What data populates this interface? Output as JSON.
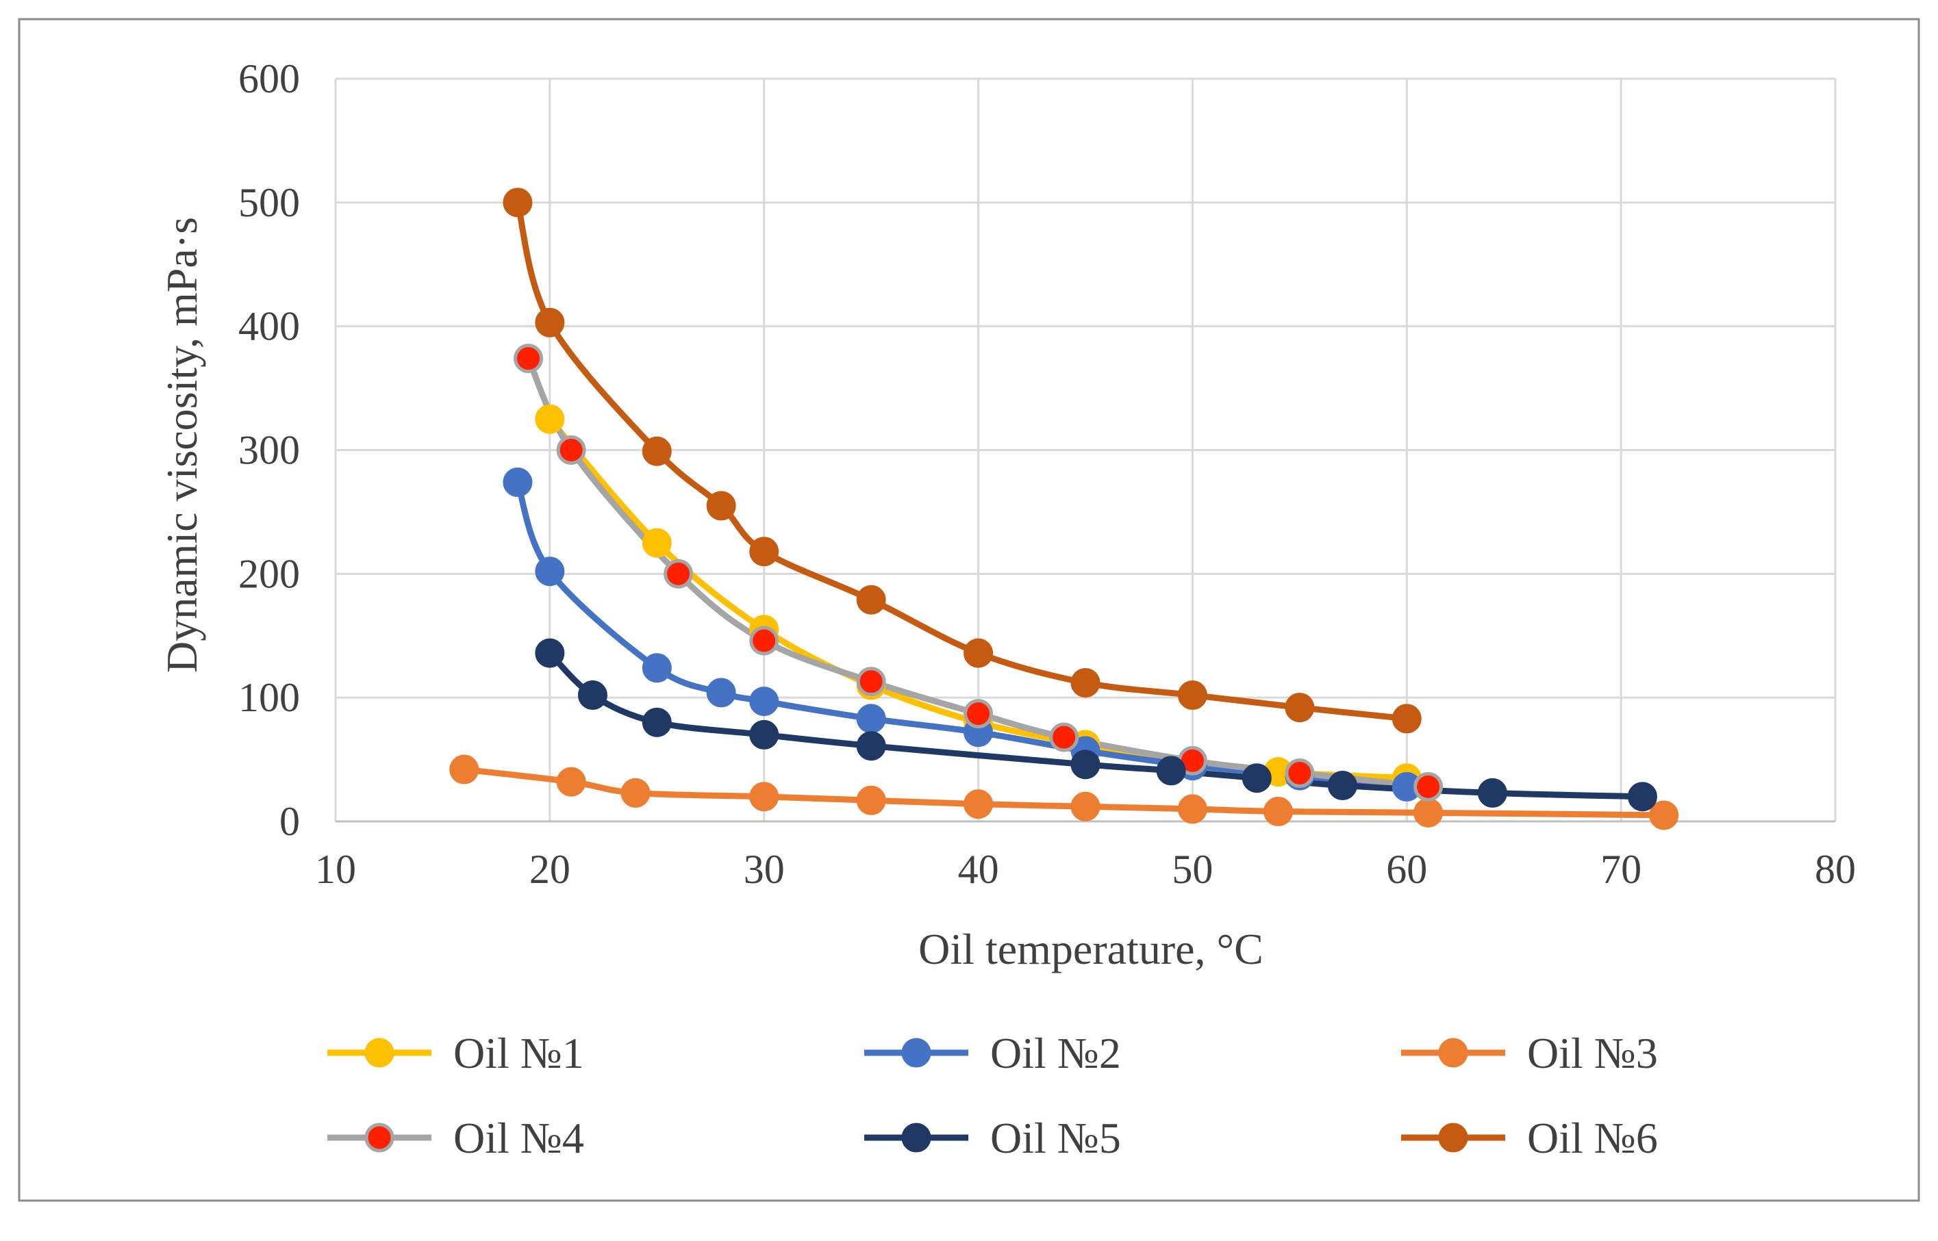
{
  "chart_data": {
    "type": "line",
    "title": "",
    "xlabel": "Oil temperature, °C",
    "ylabel": "Dynamic viscosity, mPa·s",
    "xlim": [
      10,
      80
    ],
    "ylim": [
      0,
      600
    ],
    "xticks": [
      10,
      20,
      30,
      40,
      50,
      60,
      70,
      80
    ],
    "yticks": [
      0,
      100,
      200,
      300,
      400,
      500,
      600
    ],
    "xtick_labels": [
      "10",
      "20",
      "30",
      "40",
      "50",
      "60",
      "70",
      "80"
    ],
    "ytick_labels": [
      "0",
      "100",
      "200",
      "300",
      "400",
      "500",
      "600"
    ],
    "grid": true,
    "legend_position": "bottom",
    "series": [
      {
        "name": "Oil №1",
        "color": "#FFC000",
        "marker_color": "#FFC000",
        "marker_edge": "#FFC000",
        "x": [
          20,
          25,
          30,
          35,
          40,
          45,
          50,
          54,
          60
        ],
        "y": [
          325,
          225,
          155,
          110,
          80,
          62,
          48,
          40,
          35
        ]
      },
      {
        "name": "Oil №2",
        "color": "#4472C4",
        "marker_color": "#4472C4",
        "marker_edge": "#4472C4",
        "x": [
          18.5,
          20,
          25,
          28,
          30,
          35,
          40,
          45,
          50,
          55,
          60
        ],
        "y": [
          274,
          202,
          124,
          104,
          97,
          83,
          72,
          57,
          45,
          37,
          28
        ]
      },
      {
        "name": "Oil №3",
        "color": "#ED7D31",
        "marker_color": "#ED7D31",
        "marker_edge": "#ED7D31",
        "x": [
          16,
          21,
          24,
          30,
          35,
          40,
          45,
          50,
          54,
          61,
          72
        ],
        "y": [
          42,
          32,
          23,
          20,
          17,
          14,
          12,
          10,
          8,
          7,
          5
        ]
      },
      {
        "name": "Oil №4",
        "color": "#A5A5A5",
        "marker_color": "#FF2000",
        "marker_edge": "#A5A5A5",
        "x": [
          19,
          21,
          26,
          30,
          35,
          40,
          44,
          50,
          55,
          61
        ],
        "y": [
          374,
          300,
          200,
          146,
          113,
          87,
          68,
          49,
          39,
          28
        ]
      },
      {
        "name": "Oil №5",
        "color": "#1F3864",
        "marker_color": "#1F3864",
        "marker_edge": "#1F3864",
        "x": [
          20,
          22,
          25,
          30,
          35,
          45,
          49,
          53,
          57,
          64,
          71
        ],
        "y": [
          136,
          102,
          80,
          70,
          61,
          46,
          41,
          35,
          29,
          23,
          20
        ]
      },
      {
        "name": "Oil №6",
        "color": "#C55A11",
        "marker_color": "#C55A11",
        "marker_edge": "#C55A11",
        "x": [
          18.5,
          20,
          25,
          28,
          30,
          35,
          40,
          45,
          50,
          55,
          60
        ],
        "y": [
          500,
          403,
          299,
          255,
          218,
          179,
          136,
          112,
          102,
          92,
          83
        ]
      }
    ]
  }
}
